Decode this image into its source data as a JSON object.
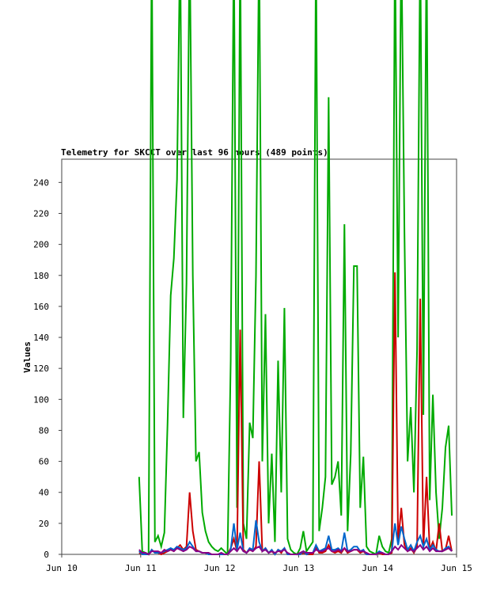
{
  "chart_data": {
    "type": "line",
    "title": "Telemetry for SKCCT over last 96 hours (489 points)",
    "ylabel": "Values",
    "x": [
      10.98,
      11.02,
      11.06,
      11.1,
      11.14,
      11.18,
      11.22,
      11.26,
      11.3,
      11.34,
      11.38,
      11.42,
      11.46,
      11.5,
      11.54,
      11.58,
      11.62,
      11.66,
      11.7,
      11.74,
      11.78,
      11.82,
      11.86,
      11.9,
      11.94,
      11.98,
      12.02,
      12.06,
      12.1,
      12.14,
      12.18,
      12.22,
      12.26,
      12.3,
      12.34,
      12.38,
      12.42,
      12.46,
      12.5,
      12.54,
      12.58,
      12.62,
      12.66,
      12.7,
      12.74,
      12.78,
      12.82,
      12.86,
      12.9,
      12.94,
      12.98,
      13.02,
      13.06,
      13.1,
      13.14,
      13.18,
      13.22,
      13.26,
      13.3,
      13.34,
      13.38,
      13.42,
      13.46,
      13.5,
      13.54,
      13.58,
      13.62,
      13.66,
      13.7,
      13.74,
      13.78,
      13.82,
      13.86,
      13.9,
      13.94,
      13.98,
      14.02,
      14.06,
      14.1,
      14.14,
      14.18,
      14.22,
      14.26,
      14.3,
      14.34,
      14.38,
      14.42,
      14.46,
      14.5,
      14.54,
      14.58,
      14.62,
      14.66,
      14.7,
      14.74,
      14.78,
      14.82,
      14.86,
      14.9,
      14.94
    ],
    "series": [
      {
        "color": "#00aa00",
        "values": [
          50,
          2,
          1,
          0,
          400,
          8,
          12,
          5,
          14,
          84,
          167,
          191,
          242,
          400,
          88,
          175,
          400,
          180,
          60,
          66,
          27,
          15,
          8,
          5,
          3,
          2,
          4,
          2,
          0,
          125,
          400,
          30,
          400,
          20,
          10,
          85,
          75,
          180,
          400,
          60,
          155,
          20,
          65,
          8,
          125,
          40,
          159,
          10,
          3,
          1,
          0,
          4,
          15,
          2,
          5,
          8,
          400,
          15,
          30,
          50,
          295,
          45,
          50,
          60,
          25,
          213,
          15,
          65,
          186,
          186,
          30,
          63,
          5,
          2,
          1,
          0,
          12,
          5,
          2,
          1,
          10,
          400,
          140,
          400,
          208,
          60,
          95,
          40,
          132,
          400,
          90,
          400,
          35,
          103,
          40,
          10,
          30,
          69,
          83,
          25
        ]
      },
      {
        "color": "#cc0000",
        "values": [
          1,
          0,
          0,
          0,
          3,
          1,
          1,
          0,
          1,
          2,
          3,
          2,
          4,
          6,
          3,
          5,
          40,
          15,
          3,
          2,
          1,
          1,
          0,
          0,
          0,
          0,
          0,
          0,
          0,
          4,
          10,
          2,
          145,
          3,
          1,
          3,
          2,
          5,
          60,
          2,
          4,
          1,
          2,
          0,
          3,
          1,
          4,
          0,
          0,
          0,
          0,
          0,
          1,
          0,
          0,
          0,
          5,
          1,
          1,
          2,
          6,
          2,
          1,
          2,
          1,
          4,
          1,
          2,
          3,
          3,
          1,
          2,
          0,
          0,
          0,
          0,
          1,
          0,
          0,
          0,
          1,
          182,
          8,
          30,
          6,
          2,
          4,
          1,
          5,
          165,
          4,
          50,
          3,
          8,
          2,
          20,
          2,
          3,
          12,
          2
        ]
      },
      {
        "color": "#0066cc",
        "values": [
          2,
          0,
          0,
          0,
          3,
          1,
          1,
          1,
          2,
          3,
          4,
          3,
          5,
          4,
          3,
          4,
          8,
          5,
          2,
          2,
          1,
          1,
          0,
          0,
          0,
          0,
          0,
          0,
          0,
          3,
          20,
          3,
          14,
          2,
          1,
          4,
          3,
          22,
          8,
          2,
          4,
          1,
          3,
          0,
          3,
          2,
          4,
          0,
          0,
          0,
          0,
          0,
          2,
          0,
          1,
          1,
          6,
          2,
          3,
          4,
          12,
          3,
          3,
          4,
          2,
          14,
          2,
          3,
          5,
          5,
          2,
          3,
          0,
          0,
          0,
          0,
          2,
          1,
          0,
          0,
          2,
          20,
          6,
          18,
          10,
          3,
          6,
          2,
          8,
          12,
          5,
          10,
          3,
          6,
          3,
          2,
          2,
          4,
          5,
          2
        ]
      },
      {
        "color": "#880088",
        "values": [
          3,
          1,
          1,
          0,
          2,
          2,
          2,
          1,
          3,
          2,
          3,
          2,
          4,
          3,
          2,
          3,
          5,
          4,
          2,
          2,
          1,
          1,
          1,
          0,
          0,
          0,
          1,
          0,
          0,
          2,
          4,
          2,
          5,
          2,
          1,
          3,
          2,
          4,
          5,
          2,
          3,
          1,
          2,
          1,
          2,
          2,
          3,
          1,
          0,
          0,
          0,
          1,
          2,
          1,
          1,
          1,
          3,
          2,
          2,
          3,
          4,
          2,
          2,
          3,
          2,
          4,
          2,
          2,
          3,
          3,
          2,
          2,
          1,
          0,
          0,
          0,
          1,
          1,
          0,
          0,
          2,
          5,
          3,
          6,
          4,
          2,
          3,
          2,
          4,
          6,
          3,
          5,
          2,
          4,
          2,
          2,
          2,
          3,
          4,
          2
        ]
      }
    ],
    "xlim": [
      10,
      15
    ],
    "xticks": [
      {
        "value": 10,
        "label": "Jun 10"
      },
      {
        "value": 11,
        "label": "Jun 11"
      },
      {
        "value": 12,
        "label": "Jun 12"
      },
      {
        "value": 13,
        "label": "Jun 13"
      },
      {
        "value": 14,
        "label": "Jun 14"
      },
      {
        "value": 15,
        "label": "Jun 15"
      }
    ],
    "ylim": [
      0,
      255
    ],
    "yticks": [
      0,
      20,
      40,
      60,
      80,
      100,
      120,
      140,
      160,
      180,
      200,
      220,
      240
    ]
  }
}
